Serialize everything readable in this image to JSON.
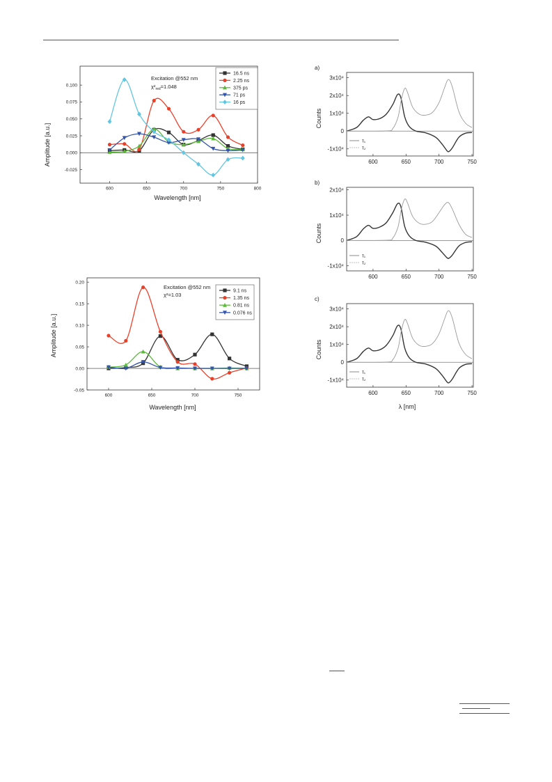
{
  "chart_data": [
    {
      "id": "c1",
      "type": "line",
      "annotation": "Excitation @552 nm",
      "chi_label": "χ²",
      "chi_sub": "red",
      "chi_value": "=1.048",
      "xlabel": "Wavelength [nm]",
      "ylabel": "Amplitude [a.u.]",
      "xlim": [
        560,
        800
      ],
      "ylim": [
        -0.045,
        0.128
      ],
      "xticks": [
        600,
        650,
        700,
        750,
        800
      ],
      "yticks": [
        -0.025,
        0,
        0.025,
        0.05,
        0.075,
        0.1
      ],
      "ytick_labels": [
        "-0.025",
        "0.000",
        "0.025",
        "0.050",
        "0.075",
        "0.100"
      ],
      "x": [
        600,
        620,
        640,
        660,
        680,
        700,
        720,
        740,
        760,
        780
      ],
      "series": [
        {
          "name": "16.5 ns",
          "color": "#333333",
          "marker": "square",
          "values": [
            0.003,
            0.004,
            0.003,
            0.034,
            0.03,
            0.012,
            0.018,
            0.026,
            0.01,
            0.005
          ]
        },
        {
          "name": "2.25 ns",
          "color": "#e8412b",
          "marker": "circle",
          "values": [
            0.012,
            0.013,
            0.005,
            0.077,
            0.065,
            0.031,
            0.034,
            0.055,
            0.023,
            0.011
          ]
        },
        {
          "name": "375 ps",
          "color": "#5cb93a",
          "marker": "triangle",
          "values": [
            0.001,
            0.002,
            0.01,
            0.035,
            0.016,
            0.012,
            0.017,
            0.021,
            0.006,
            0.005
          ]
        },
        {
          "name": "71 ps",
          "color": "#3455a8",
          "marker": "triangle-down",
          "values": [
            0.004,
            0.022,
            0.028,
            0.023,
            0.015,
            0.019,
            0.02,
            0.006,
            0.003,
            0.004
          ]
        },
        {
          "name": "16 ps",
          "color": "#63c6e0",
          "marker": "diamond",
          "values": [
            0.046,
            0.108,
            0.057,
            0.031,
            0.019,
            0.0,
            -0.017,
            -0.033,
            -0.01,
            -0.008
          ]
        }
      ]
    },
    {
      "id": "c2",
      "type": "line",
      "annotation": "Excitation @552 nm",
      "chi_label": "χ²",
      "chi_sub": "",
      "chi_value": "=1.03",
      "xlabel": "Wavelength [nm]",
      "ylabel": "Amplitude [a.u.]",
      "xlim": [
        575,
        775
      ],
      "ylim": [
        -0.05,
        0.21
      ],
      "xticks": [
        600,
        650,
        700,
        750
      ],
      "yticks": [
        -0.05,
        0,
        0.05,
        0.1,
        0.15,
        0.2
      ],
      "ytick_labels": [
        "-0.05",
        "0.00",
        "0.05",
        "0.10",
        "0.15",
        "0.20"
      ],
      "x": [
        600,
        620,
        640,
        660,
        680,
        700,
        720,
        740,
        760
      ],
      "series": [
        {
          "name": "9.1 ns",
          "color": "#333333",
          "marker": "square",
          "values": [
            0.0,
            0.002,
            0.012,
            0.075,
            0.02,
            0.032,
            0.079,
            0.023,
            0.005
          ]
        },
        {
          "name": "1.35 ns",
          "color": "#e8412b",
          "marker": "circle",
          "values": [
            0.076,
            0.064,
            0.188,
            0.085,
            0.015,
            0.01,
            -0.024,
            -0.01,
            0.001
          ]
        },
        {
          "name": "0.81 ns",
          "color": "#5cb93a",
          "marker": "triangle",
          "values": [
            0.003,
            0.008,
            0.039,
            0.003,
            0.0,
            0.0,
            0.0,
            0.001,
            0.0
          ]
        },
        {
          "name": "0.076 ns",
          "color": "#3455a8",
          "marker": "triangle-down",
          "values": [
            0.003,
            0.0,
            0.015,
            0.002,
            0.001,
            0.0,
            0.0,
            0.0,
            0.0
          ]
        }
      ]
    },
    {
      "id": "a",
      "type": "line",
      "panel_label": "a)",
      "ylabel": "Counts",
      "xlabel": "",
      "xlim": [
        560,
        752
      ],
      "ylim": [
        -14000,
        33000
      ],
      "xticks": [
        600,
        650,
        700,
        750
      ],
      "yticks": [
        -10000,
        0,
        10000,
        20000,
        30000
      ],
      "ytick_labels": [
        "-1x10⁴",
        "0",
        "1x10⁴",
        "2x10⁴",
        "3x10⁴"
      ],
      "legend": [
        "τ₁",
        "τ₂"
      ],
      "series": [
        {
          "name": "τ₁",
          "style": "dark",
          "x": [
            560,
            575,
            585,
            593,
            600,
            610,
            620,
            630,
            637,
            642,
            648,
            655,
            665,
            680,
            695,
            705,
            712,
            715,
            720,
            730,
            740,
            750
          ],
          "values": [
            0,
            2000,
            6000,
            8000,
            6500,
            7000,
            9500,
            15000,
            20500,
            19000,
            8000,
            2500,
            0,
            -1000,
            -3500,
            -7500,
            -11000,
            -11500,
            -9500,
            -3500,
            -1200,
            -800
          ]
        },
        {
          "name": "τ₂",
          "style": "light",
          "x": [
            560,
            620,
            630,
            638,
            643,
            648,
            652,
            660,
            670,
            680,
            690,
            700,
            708,
            714,
            720,
            730,
            740,
            750
          ],
          "values": [
            0,
            100,
            1500,
            8000,
            18000,
            24000,
            22000,
            13500,
            9500,
            9000,
            10500,
            16000,
            24000,
            29000,
            25000,
            11000,
            4500,
            2000
          ]
        }
      ]
    },
    {
      "id": "b",
      "type": "line",
      "panel_label": "b)",
      "ylabel": "Counts",
      "xlabel": "",
      "xlim": [
        560,
        752
      ],
      "ylim": [
        -12000,
        21000
      ],
      "xticks": [
        600,
        650,
        700,
        750
      ],
      "yticks": [
        -10000,
        0,
        10000,
        20000
      ],
      "ytick_labels": [
        "-1x10⁴",
        "0",
        "1x10⁴",
        "2x10⁴"
      ],
      "legend": [
        "τ₁",
        "τ₂"
      ],
      "series": [
        {
          "name": "τ₁",
          "style": "dark",
          "x": [
            560,
            575,
            585,
            593,
            600,
            610,
            620,
            630,
            637,
            642,
            648,
            655,
            665,
            680,
            695,
            705,
            712,
            715,
            720,
            730,
            740,
            750
          ],
          "values": [
            0,
            1500,
            4500,
            6000,
            4800,
            5300,
            7000,
            11000,
            14500,
            13500,
            5500,
            1800,
            0,
            -700,
            -2200,
            -4800,
            -6800,
            -7000,
            -5800,
            -2200,
            -800,
            -500
          ]
        },
        {
          "name": "τ₂",
          "style": "light",
          "x": [
            560,
            620,
            630,
            638,
            643,
            648,
            652,
            660,
            670,
            680,
            690,
            700,
            708,
            714,
            720,
            730,
            740,
            750
          ],
          "values": [
            0,
            100,
            1000,
            5500,
            12500,
            16300,
            15000,
            9500,
            6800,
            6400,
            7500,
            11000,
            14000,
            15000,
            12500,
            6500,
            2500,
            1200
          ]
        }
      ]
    },
    {
      "id": "c",
      "type": "line",
      "panel_label": "c)",
      "ylabel": "Counts",
      "xlabel": "λ [nm]",
      "xlim": [
        560,
        752
      ],
      "ylim": [
        -14000,
        33000
      ],
      "xticks": [
        600,
        650,
        700,
        750
      ],
      "yticks": [
        -10000,
        0,
        10000,
        20000,
        30000
      ],
      "ytick_labels": [
        "-1x10⁴",
        "0",
        "1x10⁴",
        "2x10⁴",
        "3x10⁴"
      ],
      "legend": [
        "τ₁",
        "τ₂"
      ],
      "series": [
        {
          "name": "τ₁",
          "style": "dark",
          "x": [
            560,
            575,
            585,
            593,
            600,
            610,
            620,
            630,
            637,
            642,
            648,
            655,
            665,
            680,
            695,
            705,
            712,
            715,
            720,
            730,
            740,
            750
          ],
          "values": [
            0,
            2000,
            6000,
            8000,
            6500,
            7000,
            9500,
            15000,
            20500,
            19000,
            8000,
            2500,
            0,
            -1000,
            -3500,
            -7500,
            -11000,
            -11500,
            -9500,
            -3500,
            -1200,
            -800
          ]
        },
        {
          "name": "τ₂",
          "style": "light",
          "x": [
            560,
            620,
            630,
            638,
            643,
            648,
            652,
            660,
            670,
            680,
            690,
            700,
            708,
            714,
            720,
            730,
            740,
            750
          ],
          "values": [
            0,
            100,
            1500,
            8000,
            18000,
            24000,
            22000,
            13500,
            9500,
            9000,
            10500,
            16000,
            24000,
            29000,
            25000,
            11000,
            4500,
            2000
          ]
        }
      ]
    }
  ]
}
